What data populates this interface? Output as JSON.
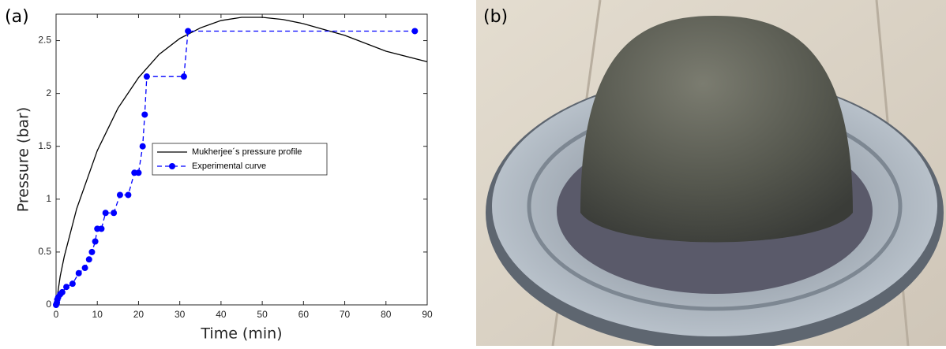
{
  "panel_labels": [
    "(a)",
    "(b)"
  ],
  "chart_data": {
    "type": "line",
    "xlabel": "Time (min)",
    "ylabel": "Pressure (bar)",
    "xlim": [
      0,
      90
    ],
    "ylim": [
      0,
      2.75
    ],
    "xticks": [
      0,
      10,
      20,
      30,
      40,
      50,
      60,
      70,
      80,
      90
    ],
    "yticks": [
      0,
      0.5,
      1,
      1.5,
      2,
      2.5
    ],
    "legend": "center",
    "series": [
      {
        "name": "Mukherjee´s pressure profile",
        "color": "#000000",
        "style": "solid",
        "marker": false,
        "x": [
          0,
          1,
          2,
          5,
          10,
          15,
          20,
          25,
          30,
          35,
          40,
          45,
          50,
          55,
          60,
          70,
          80,
          90
        ],
        "values": [
          0,
          0.27,
          0.46,
          0.91,
          1.46,
          1.86,
          2.15,
          2.37,
          2.52,
          2.62,
          2.69,
          2.72,
          2.72,
          2.7,
          2.66,
          2.55,
          2.4,
          2.3
        ]
      },
      {
        "name": "Experimental curve",
        "color": "#0000ff",
        "style": "dashed",
        "marker": true,
        "x": [
          0,
          0.2,
          0.3,
          0.5,
          1,
          1.5,
          2.5,
          4,
          5.5,
          7,
          8,
          8.7,
          9.5,
          10,
          11,
          12,
          14,
          15.5,
          17.5,
          19,
          20,
          21,
          21.5,
          22,
          31,
          32,
          87
        ],
        "values": [
          0,
          0.02,
          0.05,
          0.07,
          0.1,
          0.12,
          0.17,
          0.2,
          0.3,
          0.35,
          0.43,
          0.5,
          0.6,
          0.72,
          0.72,
          0.87,
          0.87,
          1.04,
          1.04,
          1.25,
          1.25,
          1.5,
          1.8,
          2.16,
          2.16,
          2.59,
          2.59
        ]
      }
    ]
  }
}
